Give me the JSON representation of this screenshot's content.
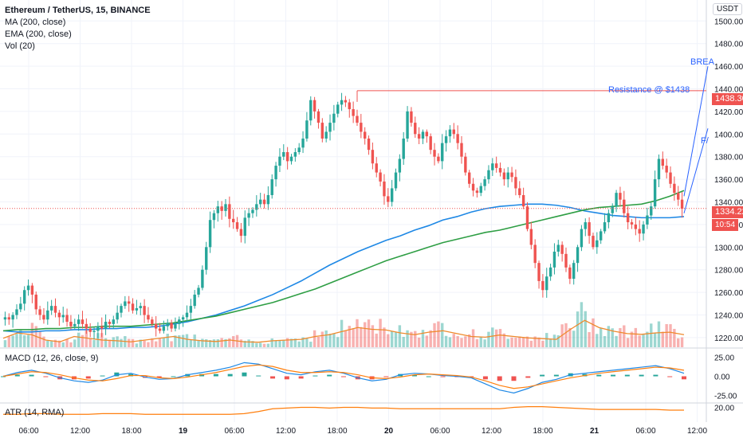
{
  "symbol": {
    "title": "Ethereum / TetherUS, 15, BINANCE",
    "indicators": [
      "MA (200, close)",
      "EMA (200, close)",
      "Vol (20)"
    ]
  },
  "currency": "USDT",
  "annotations": {
    "resistance_label": "Resistance @ $1438",
    "breakout_label_partial": "BREA",
    "second_label_partial": "F/"
  },
  "price_tags": {
    "resistance": "1438.30",
    "last_price": "1334.22",
    "countdown": "10:54"
  },
  "panes": {
    "macd_label": "MACD (12, 26, close, 9)",
    "atr_label": "ATR (14, RMA)"
  },
  "colors": {
    "up": "#26a69a",
    "down": "#ef5350",
    "ma": "#1e88e5",
    "ema": "#2e9e44",
    "vol_ma": "#ef8a2c",
    "resistance": "#ef5350",
    "macd": "#1e88e5",
    "signal": "#ff7f0e",
    "atr": "#ff7f0e"
  },
  "chart_data": [
    {
      "type": "candlestick",
      "title": "Ethereum / TetherUS, 15, BINANCE",
      "xlabel": "",
      "ylabel": "",
      "x_ticks": [
        "06:00",
        "12:00",
        "18:00",
        "19",
        "06:00",
        "12:00",
        "18:00",
        "20",
        "06:00",
        "12:00",
        "18:00",
        "21",
        "06:00",
        "12:00"
      ],
      "y_ticks": [
        1500,
        1480,
        1460,
        1440,
        1420,
        1400,
        1380,
        1360,
        1340,
        1320,
        1300,
        1280,
        1260,
        1240,
        1220
      ],
      "ylim": [
        1215,
        1515
      ],
      "close_series": [
        1238,
        1236,
        1240,
        1245,
        1250,
        1262,
        1266,
        1258,
        1245,
        1240,
        1236,
        1244,
        1248,
        1242,
        1238,
        1240,
        1234,
        1230,
        1232,
        1236,
        1232,
        1228,
        1225,
        1226,
        1230,
        1228,
        1234,
        1232,
        1236,
        1242,
        1248,
        1252,
        1250,
        1244,
        1246,
        1248,
        1240,
        1236,
        1232,
        1228,
        1226,
        1230,
        1233,
        1228,
        1232,
        1236,
        1238,
        1242,
        1248,
        1258,
        1264,
        1280,
        1300,
        1324,
        1330,
        1336,
        1332,
        1338,
        1325,
        1322,
        1316,
        1310,
        1326,
        1330,
        1333,
        1338,
        1342,
        1338,
        1346,
        1360,
        1372,
        1380,
        1384,
        1376,
        1380,
        1384,
        1388,
        1396,
        1412,
        1430,
        1420,
        1410,
        1396,
        1402,
        1410,
        1418,
        1426,
        1430,
        1428,
        1422,
        1416,
        1410,
        1402,
        1396,
        1386,
        1374,
        1366,
        1358,
        1345,
        1340,
        1352,
        1366,
        1378,
        1396,
        1420,
        1410,
        1400,
        1396,
        1402,
        1398,
        1386,
        1380,
        1376,
        1392,
        1398,
        1404,
        1400,
        1392,
        1380,
        1366,
        1356,
        1350,
        1348,
        1354,
        1360,
        1368,
        1374,
        1370,
        1366,
        1360,
        1366,
        1362,
        1352,
        1346,
        1336,
        1316,
        1302,
        1286,
        1270,
        1262,
        1274,
        1282,
        1296,
        1302,
        1294,
        1282,
        1272,
        1286,
        1300,
        1316,
        1322,
        1310,
        1300,
        1306,
        1314,
        1322,
        1330,
        1336,
        1348,
        1342,
        1330,
        1322,
        1320,
        1316,
        1312,
        1320,
        1328,
        1336,
        1360,
        1378,
        1372,
        1366,
        1356,
        1348,
        1342,
        1334
      ],
      "ma_200": [
        1226,
        1225,
        1225,
        1226,
        1226,
        1227,
        1227,
        1228,
        1228,
        1229,
        1229,
        1230,
        1232,
        1234,
        1237,
        1240,
        1244,
        1248,
        1253,
        1258,
        1264,
        1270,
        1277,
        1284,
        1290,
        1296,
        1301,
        1306,
        1310,
        1315,
        1319,
        1324,
        1327,
        1331,
        1334,
        1336,
        1337,
        1338,
        1338,
        1337,
        1335,
        1332,
        1330,
        1328,
        1327,
        1326,
        1326,
        1326,
        1327
      ],
      "ema_200": [
        1226,
        1227,
        1227,
        1228,
        1228,
        1229,
        1229,
        1230,
        1230,
        1230,
        1231,
        1232,
        1233,
        1235,
        1237,
        1239,
        1242,
        1245,
        1248,
        1251,
        1255,
        1259,
        1263,
        1268,
        1273,
        1278,
        1283,
        1288,
        1292,
        1296,
        1300,
        1304,
        1307,
        1310,
        1313,
        1315,
        1318,
        1321,
        1324,
        1327,
        1330,
        1333,
        1335,
        1336,
        1337,
        1338,
        1341,
        1345,
        1350
      ],
      "volume_relative": [
        0.25,
        0.4,
        0.35,
        0.2,
        0.15,
        0.3,
        0.25,
        0.2,
        0.18,
        0.15,
        0.2,
        0.25,
        0.3,
        0.22,
        0.18,
        0.16,
        0.2,
        0.15,
        0.14,
        0.18,
        0.2,
        0.22,
        0.3,
        0.35,
        0.45,
        0.55,
        0.5,
        0.48,
        0.4,
        0.35,
        0.42,
        0.46,
        0.38,
        0.3,
        0.28,
        0.34,
        0.3,
        0.26,
        0.24,
        0.22,
        0.5,
        0.75,
        0.55,
        0.45,
        0.38,
        0.36,
        0.4,
        0.42,
        0.35
      ],
      "resistance": 1438.3,
      "last_price": 1334.22
    },
    {
      "type": "line",
      "title": "MACD (12, 26, close, 9)",
      "y_ticks": [
        25.0,
        0.0,
        -25.0
      ],
      "ylim": [
        -32,
        32
      ],
      "series": [
        {
          "values": [
            0,
            5,
            8,
            4,
            -2,
            -6,
            -8,
            -5,
            2,
            4,
            -1,
            -4,
            -3,
            2,
            5,
            8,
            12,
            18,
            16,
            10,
            4,
            2,
            6,
            8,
            4,
            -2,
            -6,
            -4,
            2,
            4,
            3,
            1,
            0,
            -2,
            -10,
            -18,
            -22,
            -16,
            -8,
            -4,
            2,
            4,
            6,
            8,
            10,
            12,
            14,
            10,
            4
          ]
        },
        {
          "values": [
            0,
            3,
            6,
            5,
            2,
            -2,
            -5,
            -6,
            -3,
            1,
            1,
            -2,
            -3,
            -1,
            2,
            5,
            9,
            13,
            15,
            13,
            8,
            5,
            5,
            6,
            5,
            2,
            -2,
            -3,
            -1,
            2,
            3,
            2,
            1,
            -1,
            -6,
            -12,
            -16,
            -14,
            -10,
            -6,
            -2,
            1,
            4,
            6,
            8,
            10,
            12,
            11,
            8
          ]
        }
      ]
    },
    {
      "type": "line",
      "title": "ATR (14, RMA)",
      "y_ticks": [
        20.0
      ],
      "ylim": [
        0,
        24
      ],
      "series": [
        {
          "values": [
            10,
            10,
            11,
            11,
            10,
            10,
            10,
            11,
            11,
            11,
            10,
            10,
            10,
            10,
            10,
            10,
            10,
            11,
            14,
            18,
            19,
            20,
            20,
            19,
            20,
            20,
            19,
            19,
            18,
            18,
            18,
            18,
            18,
            18,
            18,
            18,
            20,
            21,
            21,
            20,
            19,
            18,
            17,
            17,
            17,
            17,
            17,
            16,
            16
          ]
        }
      ]
    }
  ]
}
